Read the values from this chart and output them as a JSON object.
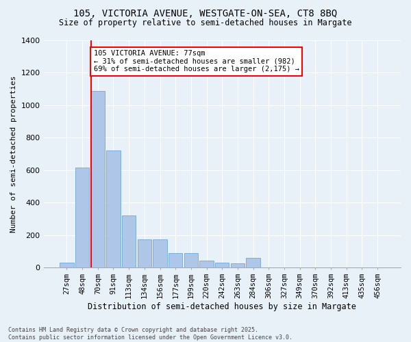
{
  "title_line1": "105, VICTORIA AVENUE, WESTGATE-ON-SEA, CT8 8BQ",
  "title_line2": "Size of property relative to semi-detached houses in Margate",
  "xlabel": "Distribution of semi-detached houses by size in Margate",
  "ylabel": "Number of semi-detached properties",
  "categories": [
    "27sqm",
    "48sqm",
    "70sqm",
    "91sqm",
    "113sqm",
    "134sqm",
    "156sqm",
    "177sqm",
    "199sqm",
    "220sqm",
    "242sqm",
    "263sqm",
    "284sqm",
    "306sqm",
    "327sqm",
    "349sqm",
    "370sqm",
    "392sqm",
    "413sqm",
    "435sqm",
    "456sqm"
  ],
  "values": [
    30,
    615,
    1090,
    720,
    320,
    175,
    175,
    90,
    90,
    45,
    30,
    25,
    60,
    0,
    0,
    0,
    0,
    0,
    0,
    0,
    0
  ],
  "bar_color": "#aec6e8",
  "bar_edge_color": "#5a9fd4",
  "background_color": "#e8f0f8",
  "grid_color": "#ffffff",
  "vline_color": "red",
  "vline_position": 1.575,
  "annotation_title": "105 VICTORIA AVENUE: 77sqm",
  "annotation_line1": "← 31% of semi-detached houses are smaller (982)",
  "annotation_line2": "69% of semi-detached houses are larger (2,175) →",
  "annotation_box_color": "red",
  "ylim": [
    0,
    1400
  ],
  "yticks": [
    0,
    200,
    400,
    600,
    800,
    1000,
    1200,
    1400
  ],
  "footer_line1": "Contains HM Land Registry data © Crown copyright and database right 2025.",
  "footer_line2": "Contains public sector information licensed under the Open Government Licence v3.0."
}
